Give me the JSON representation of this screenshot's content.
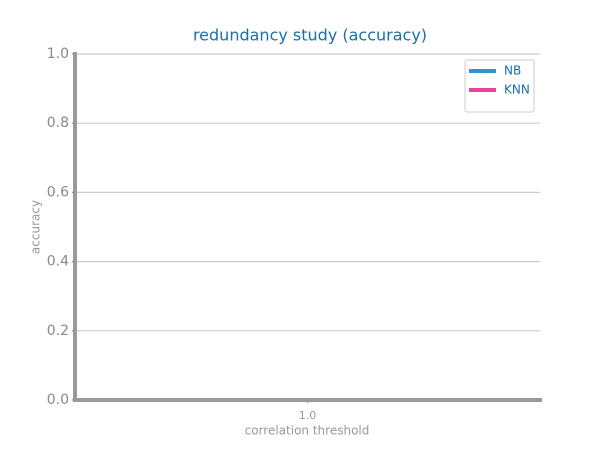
{
  "chart_data": {
    "type": "line",
    "title": "redundancy study (accuracy)",
    "x_label": "correlation threshold",
    "y_label": "accuracy",
    "x": [
      1
    ],
    "series": [
      {
        "name": "NB",
        "color": "#2a96d0",
        "values": [
          null
        ]
      },
      {
        "name": "KNN",
        "color": "#e8449a",
        "values": [
          null
        ]
      }
    ],
    "xlim": [
      0.95,
      1.05
    ],
    "xticks": [
      {
        "value": 1,
        "label": "1.0"
      }
    ],
    "ylim": [
      0,
      1
    ],
    "yticks": [
      {
        "value": 0,
        "label": "0.0"
      },
      0.2,
      0.4,
      0.6,
      0.8,
      {
        "value": 1,
        "label": "1.0"
      }
    ],
    "grid": true,
    "legend": "upper right"
  }
}
